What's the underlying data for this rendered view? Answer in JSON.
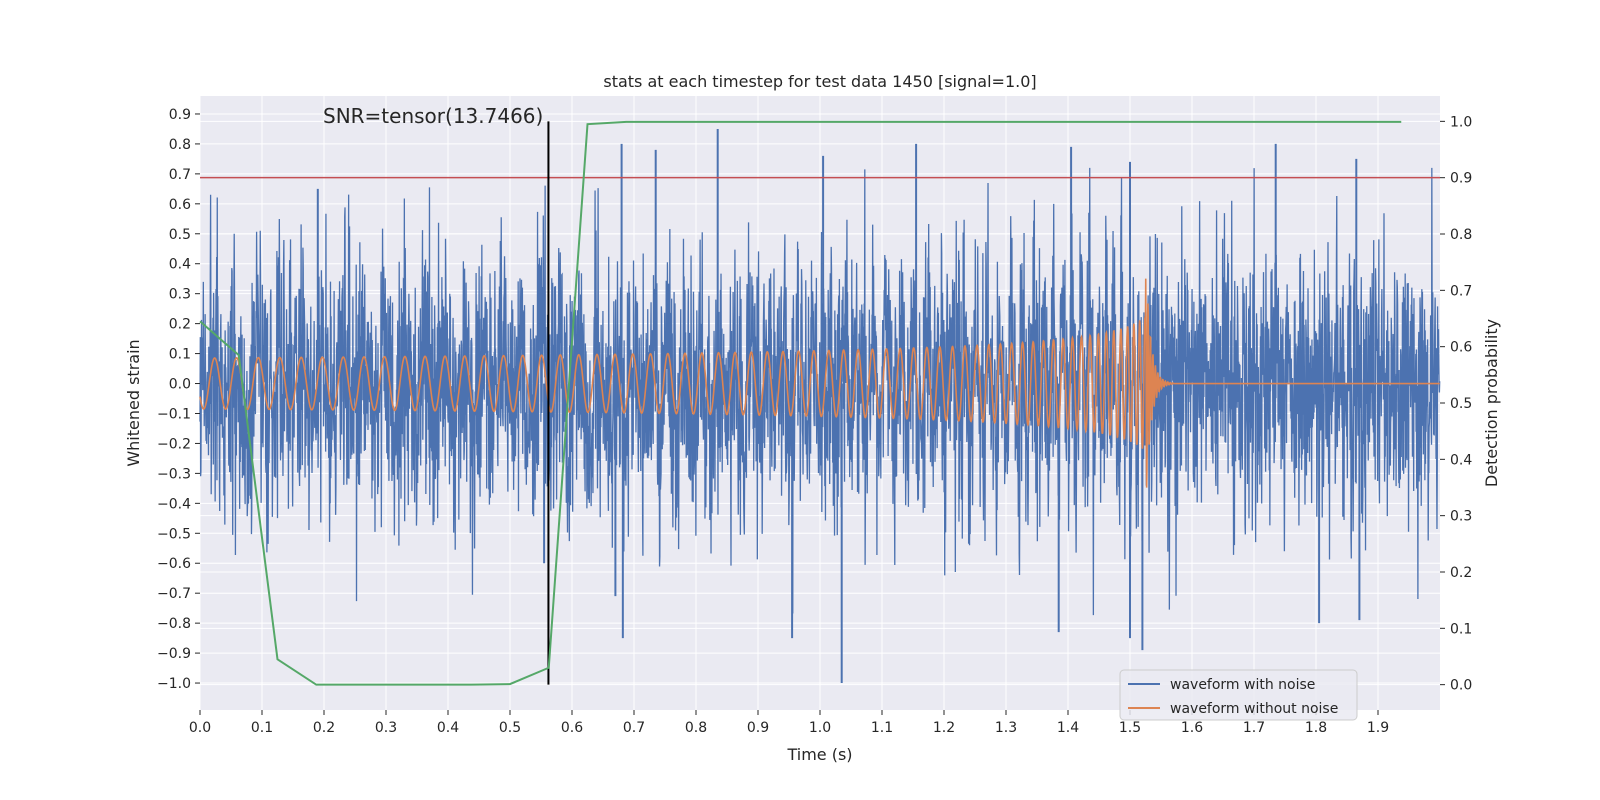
{
  "chart_data": {
    "type": "line",
    "title": "stats at each timestep for test data 1450 [signal=1.0]",
    "xlabel": "Time (s)",
    "ylabel": "Whitened strain",
    "y2label": "Detection probability",
    "xlim": [
      0.0,
      2.0
    ],
    "ylim": [
      -1.09,
      0.96
    ],
    "y2lim": [
      -0.045,
      1.045
    ],
    "xticks": [
      "0.0",
      "0.1",
      "0.2",
      "0.3",
      "0.4",
      "0.5",
      "0.6",
      "0.7",
      "0.8",
      "0.9",
      "1.0",
      "1.1",
      "1.2",
      "1.3",
      "1.4",
      "1.5",
      "1.6",
      "1.7",
      "1.8",
      "1.9"
    ],
    "yticks": [
      "0.9",
      "0.8",
      "0.7",
      "0.6",
      "0.5",
      "0.4",
      "0.3",
      "0.2",
      "0.1",
      "0.0",
      "−0.1",
      "−0.2",
      "−0.3",
      "−0.4",
      "−0.5",
      "−0.6",
      "−0.7",
      "−0.8",
      "−0.9",
      "−1.0"
    ],
    "y2ticks": [
      "1.0",
      "0.9",
      "0.8",
      "0.7",
      "0.6",
      "0.5",
      "0.4",
      "0.3",
      "0.2",
      "0.1",
      "0.0"
    ],
    "annotation": "SNR=tensor(13.7466)",
    "marker_time": 0.562,
    "threshold_probability": 0.9,
    "legend": {
      "position": "lower-right",
      "entries": [
        "waveform with noise",
        "waveform without noise"
      ]
    },
    "colors": {
      "noisy": "#4c72b0",
      "clean": "#dd8452",
      "probability": "#55a868",
      "threshold": "#c44e52",
      "marker": "#000000",
      "background": "#eaeaf2",
      "grid": "#ffffff"
    },
    "series": [
      {
        "name": "waveform with noise",
        "axis": "left",
        "noise_std": 0.22,
        "peaks": [
          {
            "t": 0.835,
            "v": 0.85
          },
          {
            "t": 0.68,
            "v": 0.8
          },
          {
            "t": 0.735,
            "v": 0.78
          },
          {
            "t": 1.155,
            "v": 0.8
          },
          {
            "t": 1.735,
            "v": 0.8
          },
          {
            "t": 1.405,
            "v": 0.79
          },
          {
            "t": 1.005,
            "v": 0.76
          },
          {
            "t": 1.5,
            "v": 0.74
          },
          {
            "t": 1.865,
            "v": 0.75
          },
          {
            "t": 1.035,
            "v": -1.0
          },
          {
            "t": 1.52,
            "v": -0.89
          },
          {
            "t": 1.5,
            "v": -0.85
          },
          {
            "t": 0.682,
            "v": -0.85
          },
          {
            "t": 0.955,
            "v": -0.85
          },
          {
            "t": 1.805,
            "v": -0.8
          },
          {
            "t": 1.87,
            "v": -0.79
          },
          {
            "t": 1.385,
            "v": -0.83
          },
          {
            "t": 0.19,
            "v": 0.65
          },
          {
            "t": 0.555,
            "v": -0.6
          },
          {
            "t": 0.67,
            "v": -0.71
          }
        ]
      },
      {
        "name": "waveform without noise",
        "axis": "left",
        "t_start": 0.0,
        "t_merger": 1.525,
        "f_start": 28,
        "base_amplitude": 0.085,
        "peak_amplitude": 0.45,
        "ringdown_end": 1.57
      },
      {
        "name": "detection probability",
        "axis": "right",
        "x": [
          0.0,
          0.0625,
          0.125,
          0.1875,
          0.25,
          0.3125,
          0.375,
          0.4375,
          0.5,
          0.5625,
          0.625,
          0.6875,
          0.75,
          0.8125,
          0.875,
          0.9375,
          1.0,
          1.0625,
          1.125,
          1.1875,
          1.25,
          1.3125,
          1.375,
          1.4375,
          1.5,
          1.5625,
          1.625,
          1.6875,
          1.75,
          1.8125,
          1.875,
          1.9375
        ],
        "values": [
          0.645,
          0.585,
          0.045,
          0.0,
          0.0,
          0.0,
          0.0,
          0.0,
          0.001,
          0.03,
          0.995,
          0.999,
          0.999,
          0.999,
          0.999,
          0.999,
          0.999,
          0.999,
          0.999,
          0.999,
          0.999,
          0.999,
          0.999,
          0.999,
          0.999,
          0.999,
          0.999,
          0.999,
          0.999,
          0.999,
          0.999,
          0.999
        ]
      }
    ]
  }
}
